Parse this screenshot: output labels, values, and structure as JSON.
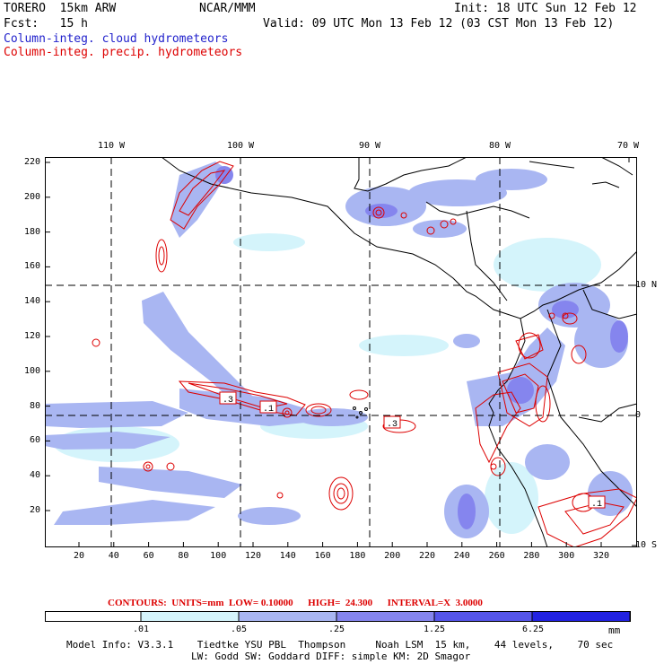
{
  "header": {
    "model": "TORERO  15km ARW",
    "org": "NCAR/MMM",
    "init": "Init: 18 UTC Sun 12 Feb 12",
    "fcst": "Fcst:   15 h",
    "valid": "Valid: 09 UTC Mon 13 Feb 12 (03 CST Mon 13 Feb 12)",
    "field1": "Column-integ. cloud hydrometeors",
    "field2": "Column-integ. precip. hydrometeors"
  },
  "colors": {
    "field1": "#2222cc",
    "field2": "#dd0000",
    "contour": "#dd0000",
    "coast": "#000000"
  },
  "axes": {
    "top_lon_labels": [
      "110 W",
      "100 W",
      "90 W",
      "80 W",
      "70 W"
    ],
    "right_lat_labels": [
      "10 N",
      "0",
      "10 S"
    ],
    "left_y_ticks": [
      "220",
      "200",
      "180",
      "160",
      "140",
      "120",
      "100",
      "80",
      "60",
      "40",
      "20"
    ],
    "bottom_x_ticks": [
      "20",
      "40",
      "60",
      "80",
      "100",
      "120",
      "140",
      "160",
      "180",
      "200",
      "220",
      "240",
      "260",
      "280",
      "300",
      "320"
    ]
  },
  "contour_labels": [
    ".3",
    ".1",
    ".3",
    ".1"
  ],
  "contour_info": "CONTOURS:  UNITS=mm  LOW= 0.10000      HIGH=  24.300      INTERVAL=X  3.0000",
  "colorbar": {
    "ticks": [
      ".01",
      ".05",
      ".25",
      "1.25",
      "6.25"
    ],
    "unit": "mm",
    "colors": [
      "#ffffff",
      "#d4f4fb",
      "#a9b6f2",
      "#8585ee",
      "#5555ea",
      "#2222e2"
    ]
  },
  "footer": {
    "line1": "Model Info: V3.3.1    Tiedtke YSU PBL  Thompson     Noah LSM  15 km,    44 levels,    70 sec",
    "line2": "LW: Godd SW: Goddard DIFF: simple KM: 2D Smagor"
  }
}
